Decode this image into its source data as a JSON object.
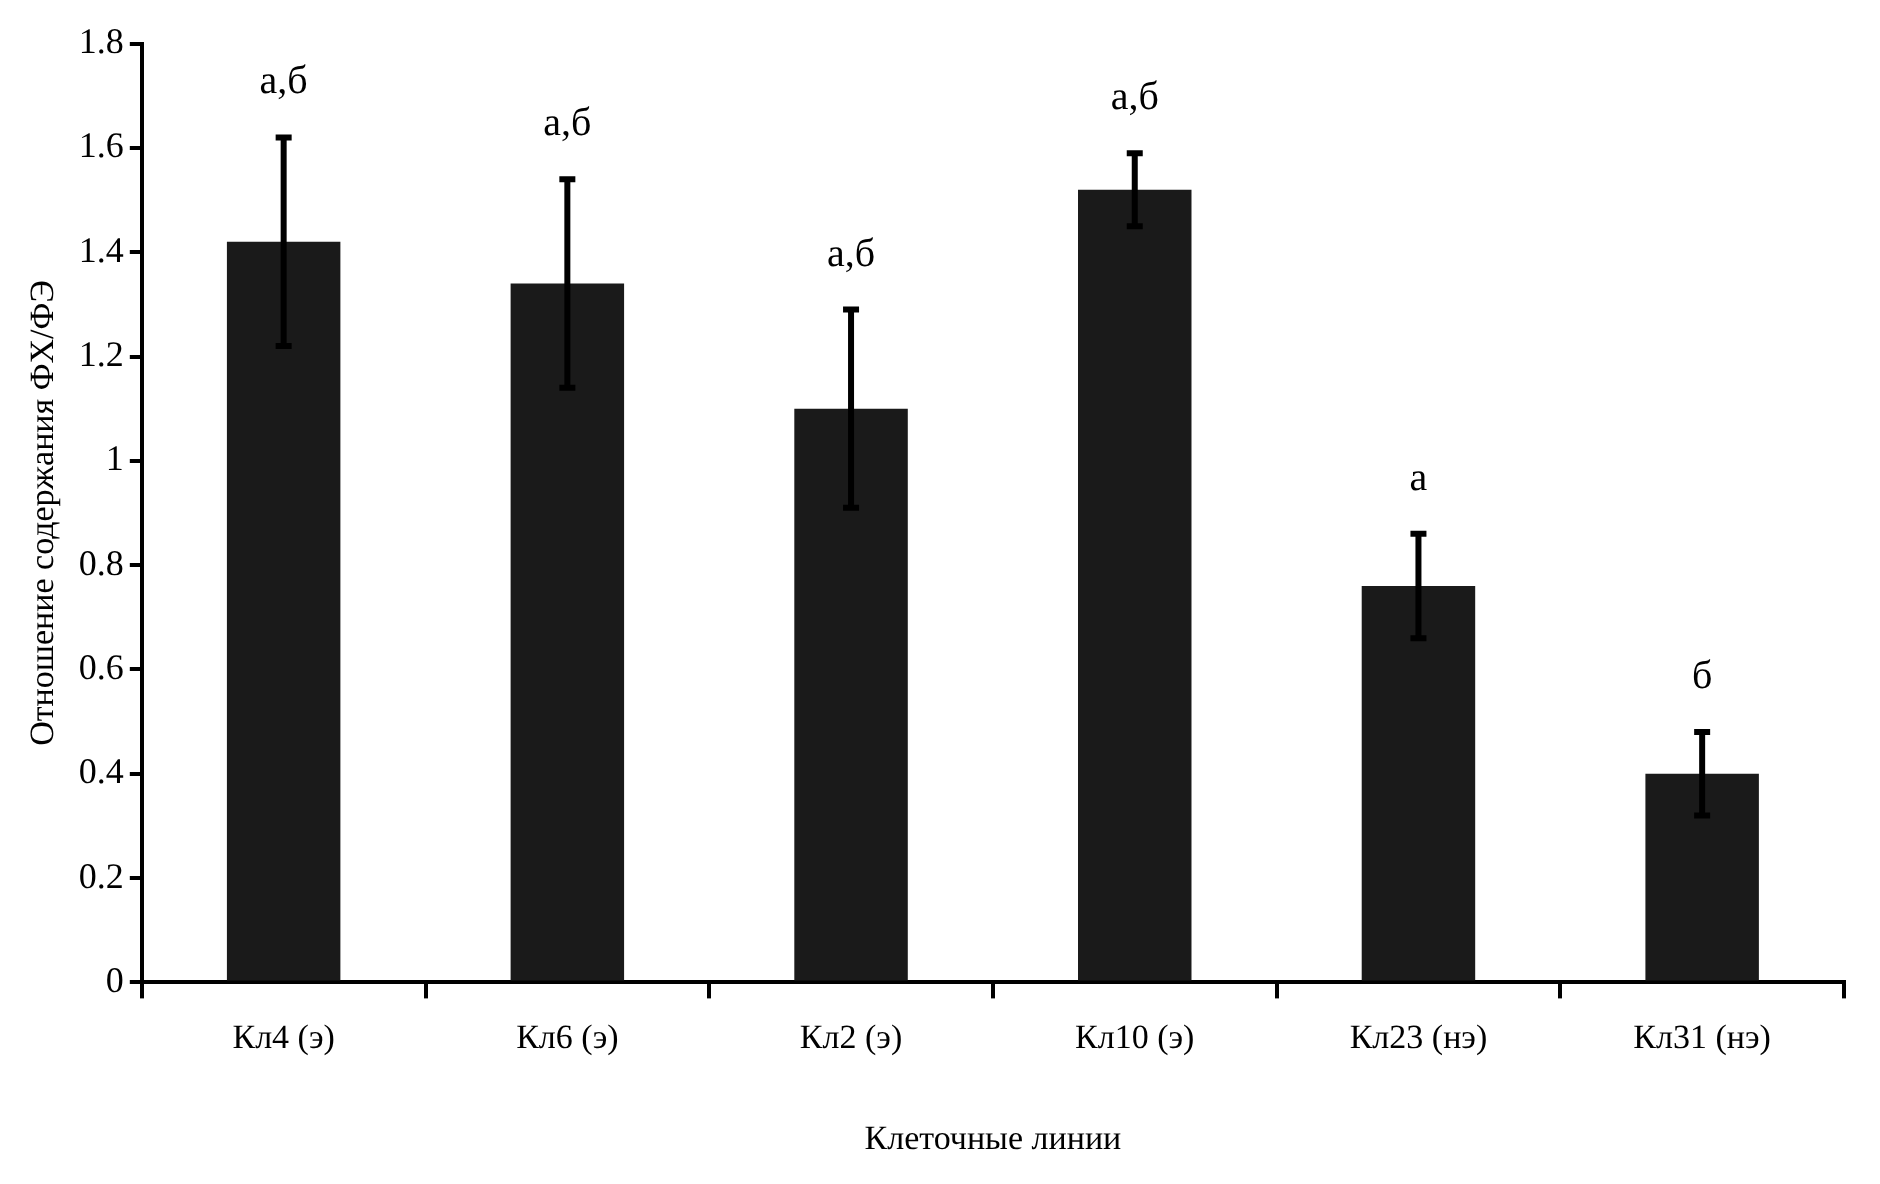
{
  "chart_data": {
    "type": "bar",
    "xlabel": "Клеточные линии",
    "ylabel": "Отношение содержания ФХ/ФЭ",
    "categories": [
      "Кл4 (э)",
      "Кл6 (э)",
      "Кл2 (э)",
      "Кл10 (э)",
      "Кл23 (нэ)",
      "Кл31 (нэ)"
    ],
    "values": [
      1.42,
      1.34,
      1.1,
      1.52,
      0.76,
      0.4
    ],
    "errors": [
      0.2,
      0.2,
      0.19,
      0.07,
      0.1,
      0.08
    ],
    "color": "#1a1a1a",
    "ylim": [
      0,
      1.8
    ],
    "yticks": [
      0,
      0.2,
      0.4,
      0.6,
      0.8,
      1,
      1.2,
      1.4,
      1.6,
      1.8
    ],
    "grid": false,
    "legend": false,
    "annotations": [
      "а,б",
      "а,б",
      "а,б",
      "а,б",
      "а",
      "б"
    ]
  }
}
